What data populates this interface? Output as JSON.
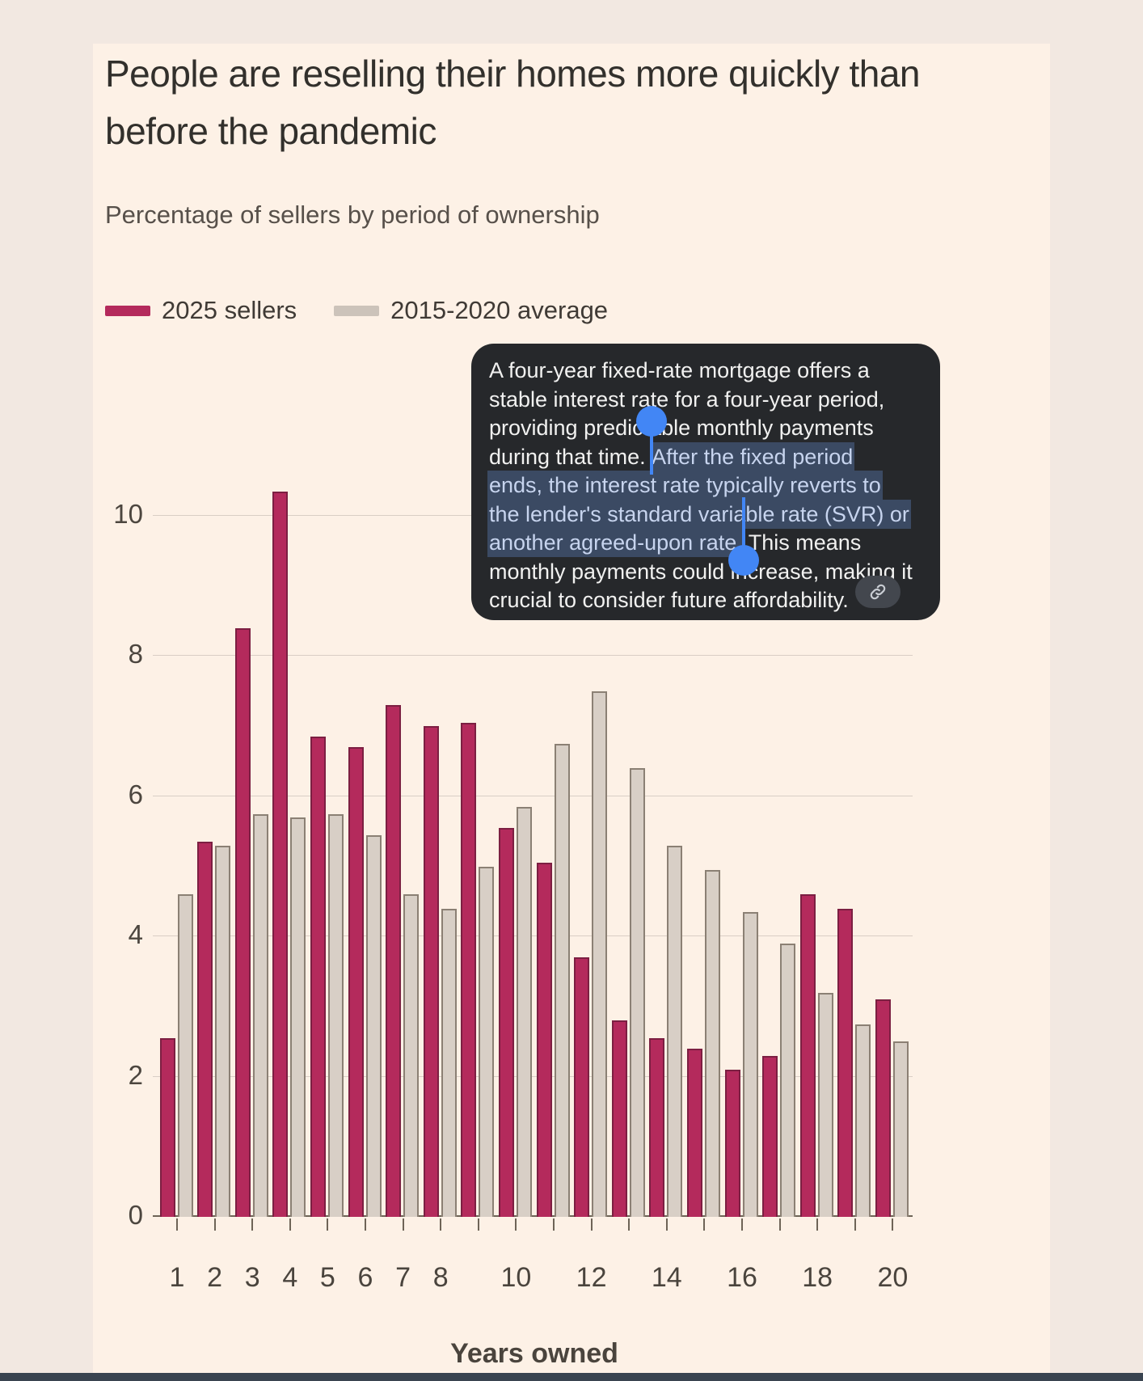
{
  "header": {
    "title": "People are reselling their homes more quickly than before the pandemic",
    "subtitle": "Percentage of sellers by period of ownership"
  },
  "legend": {
    "items": [
      {
        "label": "2025 sellers",
        "color": "#b42a5c"
      },
      {
        "label": "2015-2020 average",
        "color": "#d8cfc6"
      }
    ]
  },
  "chart_data": {
    "type": "bar",
    "title": "People are reselling their homes more quickly than before the pandemic",
    "subtitle": "Percentage of sellers by period of ownership",
    "xlabel": "Years owned",
    "ylabel": "",
    "x": [
      1,
      2,
      3,
      4,
      5,
      6,
      7,
      8,
      9,
      10,
      11,
      12,
      13,
      14,
      15,
      16,
      17,
      18,
      19,
      20
    ],
    "x_tick_labels_shown": [
      "1",
      "2",
      "3",
      "4",
      "5",
      "6",
      "7",
      "8",
      "10",
      "12",
      "14",
      "16",
      "18",
      "20"
    ],
    "y_ticks": [
      0,
      2,
      4,
      6,
      8,
      10
    ],
    "ylim": [
      0,
      10.9
    ],
    "grid": "horizontal",
    "legend_position": "top",
    "series": [
      {
        "name": "2025 sellers",
        "color": "#b42a5c",
        "values": [
          2.55,
          5.35,
          8.4,
          10.35,
          6.85,
          6.7,
          7.3,
          7.0,
          7.05,
          5.55,
          5.05,
          3.7,
          2.8,
          2.55,
          2.4,
          2.1,
          2.3,
          4.6,
          4.4,
          3.1
        ]
      },
      {
        "name": "2015-2020 average",
        "color": "#d8cfc6",
        "values": [
          4.6,
          5.3,
          5.75,
          5.7,
          5.75,
          5.45,
          4.6,
          4.4,
          5.0,
          5.85,
          6.75,
          7.5,
          6.4,
          5.3,
          4.95,
          4.35,
          3.9,
          3.2,
          2.75,
          2.5
        ]
      }
    ]
  },
  "tooltip": {
    "full_text": "A four-year fixed-rate mortgage offers a stable interest rate for a four-year period, providing predictable monthly payments during that time. After the fixed period ends, the interest rate typically reverts to the lender's standard variable rate (SVR) or another agreed-upon rate. This means monthly payments could increase, making it crucial to consider future affordability.",
    "selected_text": "After the fixed period ends, the interest rate typically reverts to the lender's standard variable rate (SVR) or another agreed-upon rate.",
    "lines": [
      {
        "pre": "A four-year fixed-rate mortgage offers a"
      },
      {
        "pre": "stable interest rate for a four-year period,"
      },
      {
        "pre": "providing predictable monthly payments"
      },
      {
        "pre": "during that time. ",
        "sel": "After the fixed period"
      },
      {
        "sel": "ends, the interest rate typically reverts to"
      },
      {
        "sel": "the lender's standard variable rate (SVR) or"
      },
      {
        "sel": "another agreed-upon rate.",
        "post": " This means"
      },
      {
        "pre": "monthly payments could increase, making it"
      },
      {
        "pre": "crucial to consider future affordability."
      }
    ],
    "link_icon": "link-icon"
  },
  "colors": {
    "background_outer": "#f2e8e1",
    "background_card": "#fdf1e6",
    "series_2025": "#b42a5c",
    "series_avg": "#d8cfc6",
    "gridline": "#d9cec5",
    "axis": "#6e6457",
    "tooltip_bg": "#26282b",
    "selection_highlight": "#3b4a63",
    "selection_handle": "#4286f5",
    "bottom_bar": "#3a4450"
  }
}
